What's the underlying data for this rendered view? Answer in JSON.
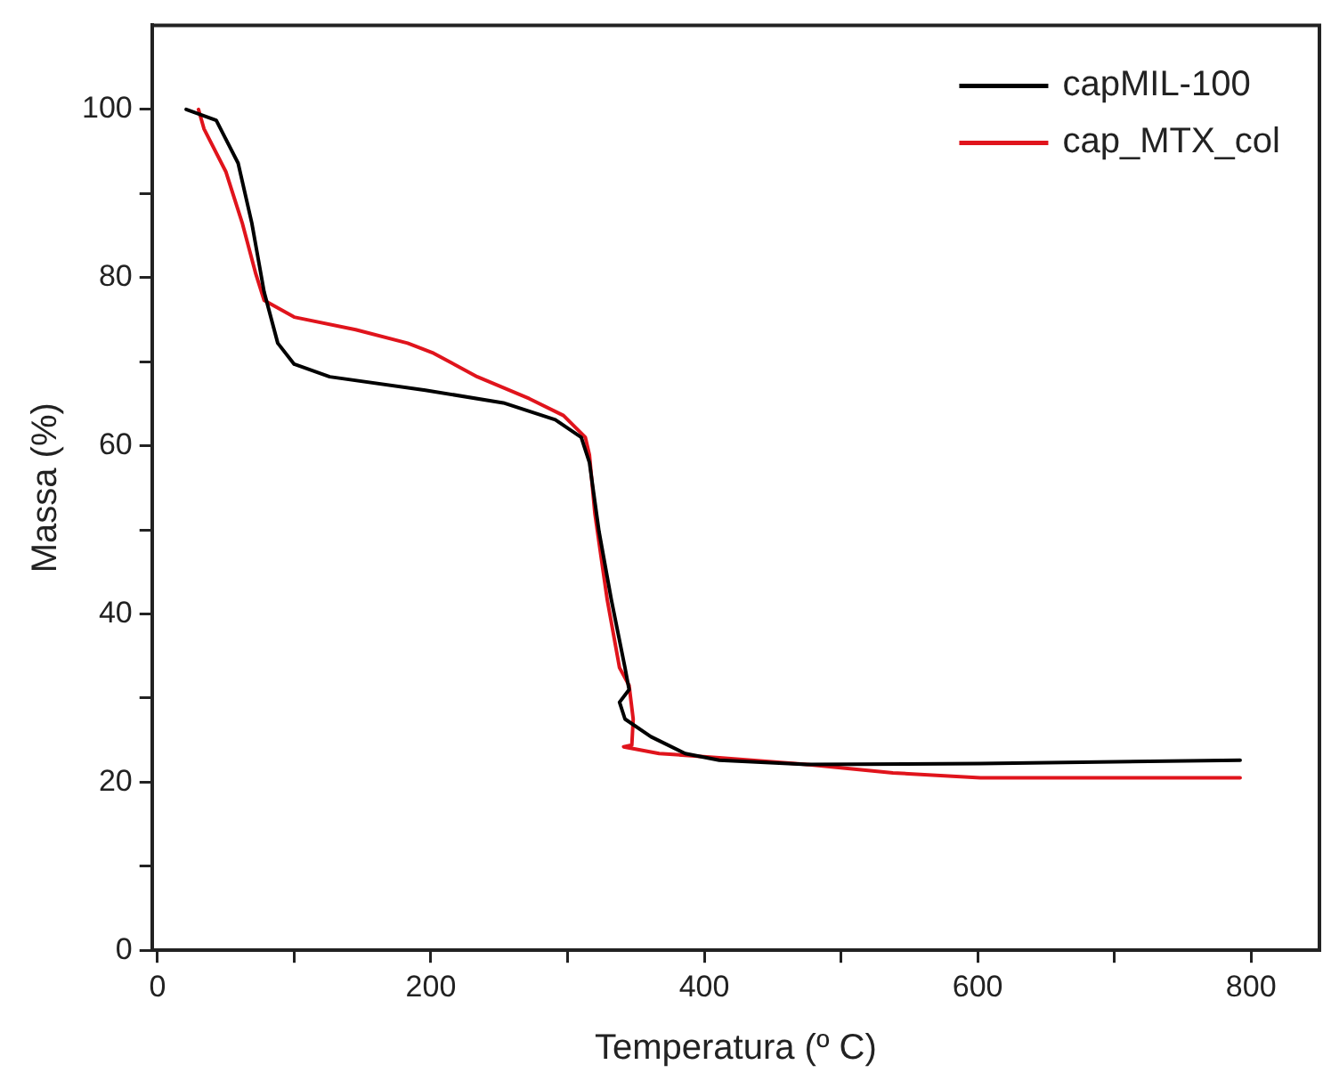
{
  "chart_data": {
    "type": "line",
    "xlabel": "Temperatura (º C)",
    "ylabel": "Massa (%)",
    "xlim": [
      -4,
      850
    ],
    "ylim": [
      0,
      110
    ],
    "xticks": [
      0,
      {
        "value": 100,
        "label": null
      },
      200,
      {
        "value": 300,
        "label": null
      },
      400,
      {
        "value": 500,
        "label": null
      },
      600,
      {
        "value": 700,
        "label": null
      },
      800
    ],
    "yticks": [
      0,
      {
        "value": 10,
        "label": null
      },
      20,
      {
        "value": 30,
        "label": null
      },
      40,
      {
        "value": 50,
        "label": null
      },
      60,
      {
        "value": 70,
        "label": null
      },
      80,
      {
        "value": 90,
        "label": null
      },
      100
    ],
    "grid": false,
    "legend": "top right",
    "marker": "none",
    "line_style": "solid",
    "series": [
      {
        "name": "capMIL-100",
        "color": "#000000",
        "x": [
          21,
          43,
          59,
          69,
          78,
          88,
          100,
          126,
          196,
          253,
          291,
          310,
          316,
          323,
          332,
          342,
          345,
          338,
          342,
          361,
          386,
          411,
          475,
          602,
          792
        ],
        "values": [
          100,
          98.7,
          93.6,
          86.5,
          78.3,
          72.2,
          69.7,
          68.2,
          66.6,
          65.1,
          63.1,
          61,
          58,
          49.8,
          41.7,
          33.6,
          31,
          29.5,
          27.5,
          25.4,
          23.4,
          22.6,
          22.1,
          22.2,
          22.6
        ]
      },
      {
        "name": "cap_MTX_col",
        "color": "#e0141c",
        "x": [
          30,
          34,
          50,
          62,
          72,
          78,
          100,
          145,
          183,
          202,
          234,
          272,
          297,
          313,
          316,
          320,
          329,
          338,
          345,
          348,
          347,
          341,
          367,
          411,
          475,
          538,
          602,
          792
        ],
        "values": [
          100,
          97.7,
          92.6,
          86.5,
          80.4,
          77.3,
          75.3,
          73.8,
          72.2,
          71,
          68.2,
          65.6,
          63.6,
          61,
          58.9,
          51.9,
          41.7,
          33.6,
          31.5,
          27.5,
          24.4,
          24.2,
          23.4,
          22.9,
          22.1,
          21.1,
          20.5,
          20.5
        ]
      }
    ]
  }
}
